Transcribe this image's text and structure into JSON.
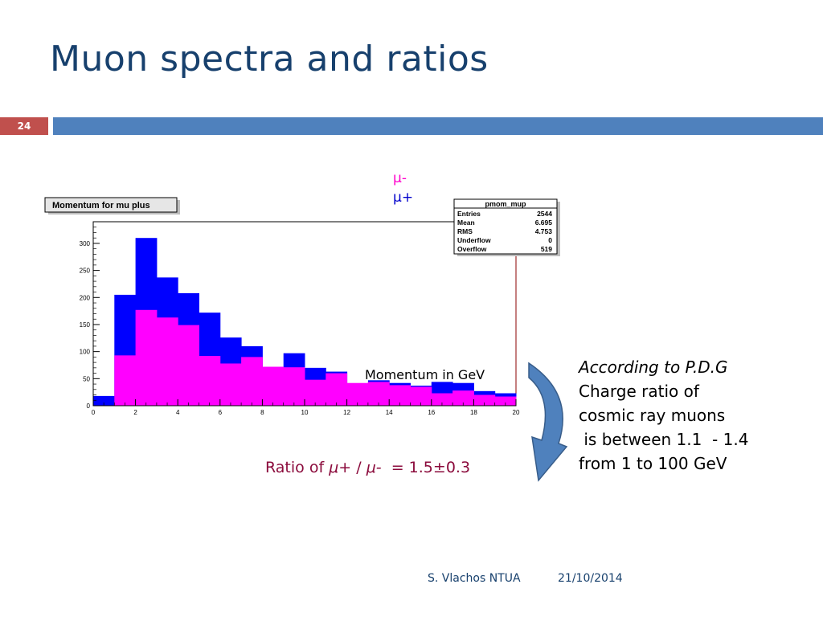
{
  "slide": {
    "title": "Muon spectra and ratios",
    "number": "24",
    "footer_author": "S. Vlachos NTUA",
    "footer_date": "21/10/2014"
  },
  "legend": {
    "mu_minus": "μ-",
    "mu_plus": "μ+"
  },
  "stats_box": {
    "name": "pmom_mup",
    "rows": [
      {
        "label": "Entries",
        "value": "2544"
      },
      {
        "label": "Mean",
        "value": "6.695"
      },
      {
        "label": "RMS",
        "value": "4.753"
      },
      {
        "label": "Underflow",
        "value": "0"
      },
      {
        "label": "Overflow",
        "value": "519"
      }
    ]
  },
  "annotations": {
    "right_line1": "According to P.D.G",
    "right_line2": "Charge ratio of",
    "right_line3": "cosmic ray muons",
    "right_line4": " is between 1.1  - 1.4",
    "right_line5": "from 1 to 100 GeV",
    "ratio_prefix": "Ratio of ",
    "ratio_mu_plus": "μ+",
    "ratio_sep": " / ",
    "ratio_mu_minus": "μ-",
    "ratio_value": "  = 1.5±0.3"
  },
  "colors": {
    "title": "#17406d",
    "bar_blue": "#4f81bd",
    "slide_num_bg": "#c0504d",
    "mu_plus": "#0000ff",
    "mu_minus": "#ff00ff",
    "ratio_text": "#8b0b3c",
    "arrow": "#4f81bd"
  },
  "chart_data": {
    "type": "bar",
    "title": "Momentum for mu plus",
    "xlabel": "Momentum in GeV",
    "ylabel": "",
    "xlim": [
      0,
      20
    ],
    "ylim": [
      0,
      340
    ],
    "x_ticks": [
      0,
      2,
      4,
      6,
      8,
      10,
      12,
      14,
      16,
      18,
      20
    ],
    "y_ticks": [
      0,
      50,
      100,
      150,
      200,
      250,
      300
    ],
    "bin_edges": [
      0,
      1,
      2,
      3,
      4,
      5,
      6,
      7,
      8,
      9,
      10,
      11,
      12,
      13,
      14,
      15,
      16,
      17,
      18,
      19,
      20
    ],
    "series": [
      {
        "name": "μ+",
        "color": "#0000ff",
        "values": [
          18,
          205,
          310,
          237,
          208,
          172,
          126,
          110,
          72,
          97,
          70,
          63,
          30,
          47,
          42,
          37,
          44,
          42,
          27,
          23
        ]
      },
      {
        "name": "μ-",
        "color": "#ff00ff",
        "values": [
          0,
          93,
          177,
          163,
          149,
          92,
          78,
          90,
          72,
          71,
          48,
          60,
          42,
          44,
          38,
          35,
          23,
          28,
          20,
          17
        ]
      }
    ]
  }
}
